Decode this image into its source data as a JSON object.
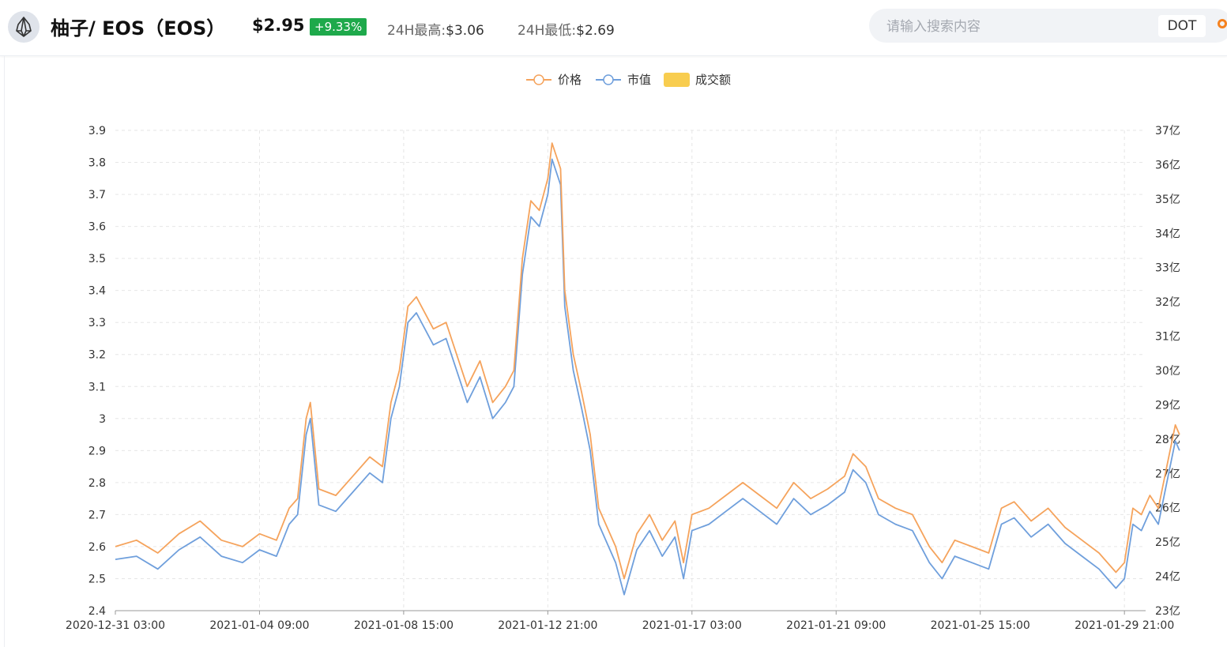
{
  "header": {
    "title": "柚子/ EOS（EOS）",
    "price": "$2.95",
    "change": "+9.33%",
    "high_label": "24H最高:",
    "high_value": "$3.06",
    "low_label": "24H最低:",
    "low_value": "$2.69"
  },
  "search": {
    "placeholder": "请输入搜索内容",
    "button_label": "DOT"
  },
  "colors": {
    "price": "#f5a35c",
    "market_cap": "#6f9fdc",
    "volume": "#f8cd4f",
    "change_badge": "#1ea94b",
    "accent": "#f5821f"
  },
  "chart_data": {
    "type": "line",
    "legend": [
      "价格",
      "市值",
      "成交额"
    ],
    "legend_position": "top-center",
    "grid": true,
    "x_ticks": [
      "2020-12-31 03:00",
      "2021-01-04 09:00",
      "2021-01-08 15:00",
      "2021-01-12 21:00",
      "2021-01-17 03:00",
      "2021-01-21 09:00",
      "2021-01-25 15:00",
      "2021-01-29 21:00"
    ],
    "xlim": [
      "2020-12-31 03:00",
      "2021-01-30 12:00"
    ],
    "y_left": {
      "ticks": [
        "2.4",
        "2.5",
        "2.6",
        "2.7",
        "2.8",
        "2.9",
        "3",
        "3.1",
        "3.2",
        "3.3",
        "3.4",
        "3.5",
        "3.6",
        "3.7",
        "3.8",
        "3.9"
      ],
      "range": [
        2.4,
        3.9
      ]
    },
    "y_right": {
      "ticks": [
        "23亿",
        "24亿",
        "25亿",
        "26亿",
        "27亿",
        "28亿",
        "29亿",
        "30亿",
        "31亿",
        "32亿",
        "33亿",
        "34亿",
        "35亿",
        "36亿",
        "37亿"
      ],
      "range": [
        23,
        37
      ],
      "unit": "亿"
    },
    "series": [
      {
        "name": "价格",
        "axis": "left",
        "points": [
          [
            "2020-12-31 03:00",
            2.6
          ],
          [
            "2020-12-31 18:00",
            2.62
          ],
          [
            "2021-01-01 09:00",
            2.58
          ],
          [
            "2021-01-02 00:00",
            2.64
          ],
          [
            "2021-01-02 15:00",
            2.68
          ],
          [
            "2021-01-03 06:00",
            2.62
          ],
          [
            "2021-01-03 21:00",
            2.6
          ],
          [
            "2021-01-04 09:00",
            2.64
          ],
          [
            "2021-01-04 21:00",
            2.62
          ],
          [
            "2021-01-05 06:00",
            2.72
          ],
          [
            "2021-01-05 12:00",
            2.75
          ],
          [
            "2021-01-05 18:00",
            3.0
          ],
          [
            "2021-01-05 21:00",
            3.05
          ],
          [
            "2021-01-06 03:00",
            2.78
          ],
          [
            "2021-01-06 15:00",
            2.76
          ],
          [
            "2021-01-07 03:00",
            2.82
          ],
          [
            "2021-01-07 15:00",
            2.88
          ],
          [
            "2021-01-08 00:00",
            2.85
          ],
          [
            "2021-01-08 06:00",
            3.05
          ],
          [
            "2021-01-08 12:00",
            3.15
          ],
          [
            "2021-01-08 18:00",
            3.35
          ],
          [
            "2021-01-09 00:00",
            3.38
          ],
          [
            "2021-01-09 12:00",
            3.28
          ],
          [
            "2021-01-09 21:00",
            3.3
          ],
          [
            "2021-01-10 03:00",
            3.22
          ],
          [
            "2021-01-10 12:00",
            3.1
          ],
          [
            "2021-01-10 21:00",
            3.18
          ],
          [
            "2021-01-11 06:00",
            3.05
          ],
          [
            "2021-01-11 15:00",
            3.1
          ],
          [
            "2021-01-11 21:00",
            3.15
          ],
          [
            "2021-01-12 03:00",
            3.5
          ],
          [
            "2021-01-12 09:00",
            3.68
          ],
          [
            "2021-01-12 15:00",
            3.65
          ],
          [
            "2021-01-12 21:00",
            3.75
          ],
          [
            "2021-01-13 00:00",
            3.86
          ],
          [
            "2021-01-13 06:00",
            3.78
          ],
          [
            "2021-01-13 09:00",
            3.4
          ],
          [
            "2021-01-13 15:00",
            3.2
          ],
          [
            "2021-01-13 21:00",
            3.08
          ],
          [
            "2021-01-14 03:00",
            2.95
          ],
          [
            "2021-01-14 09:00",
            2.72
          ],
          [
            "2021-01-14 21:00",
            2.6
          ],
          [
            "2021-01-15 03:00",
            2.5
          ],
          [
            "2021-01-15 12:00",
            2.64
          ],
          [
            "2021-01-15 21:00",
            2.7
          ],
          [
            "2021-01-16 06:00",
            2.62
          ],
          [
            "2021-01-16 15:00",
            2.68
          ],
          [
            "2021-01-16 21:00",
            2.55
          ],
          [
            "2021-01-17 03:00",
            2.7
          ],
          [
            "2021-01-17 15:00",
            2.72
          ],
          [
            "2021-01-18 03:00",
            2.76
          ],
          [
            "2021-01-18 15:00",
            2.8
          ],
          [
            "2021-01-19 03:00",
            2.76
          ],
          [
            "2021-01-19 15:00",
            2.72
          ],
          [
            "2021-01-20 03:00",
            2.8
          ],
          [
            "2021-01-20 15:00",
            2.75
          ],
          [
            "2021-01-21 03:00",
            2.78
          ],
          [
            "2021-01-21 15:00",
            2.82
          ],
          [
            "2021-01-21 21:00",
            2.89
          ],
          [
            "2021-01-22 06:00",
            2.85
          ],
          [
            "2021-01-22 15:00",
            2.75
          ],
          [
            "2021-01-23 03:00",
            2.72
          ],
          [
            "2021-01-23 15:00",
            2.7
          ],
          [
            "2021-01-24 03:00",
            2.6
          ],
          [
            "2021-01-24 12:00",
            2.55
          ],
          [
            "2021-01-24 21:00",
            2.62
          ],
          [
            "2021-01-25 09:00",
            2.6
          ],
          [
            "2021-01-25 21:00",
            2.58
          ],
          [
            "2021-01-26 06:00",
            2.72
          ],
          [
            "2021-01-26 15:00",
            2.74
          ],
          [
            "2021-01-27 03:00",
            2.68
          ],
          [
            "2021-01-27 15:00",
            2.72
          ],
          [
            "2021-01-28 03:00",
            2.66
          ],
          [
            "2021-01-28 15:00",
            2.62
          ],
          [
            "2021-01-29 03:00",
            2.58
          ],
          [
            "2021-01-29 15:00",
            2.52
          ],
          [
            "2021-01-29 21:00",
            2.55
          ],
          [
            "2021-01-30 03:00",
            2.72
          ],
          [
            "2021-01-30 09:00",
            2.7
          ],
          [
            "2021-01-30 15:00",
            2.76
          ],
          [
            "2021-01-30 21:00",
            2.72
          ],
          [
            "2021-01-31 03:00",
            2.85
          ],
          [
            "2021-01-31 09:00",
            2.98
          ],
          [
            "2021-01-31 12:00",
            2.95
          ]
        ]
      },
      {
        "name": "市值",
        "axis": "left",
        "points": [
          [
            "2020-12-31 03:00",
            2.56
          ],
          [
            "2020-12-31 18:00",
            2.57
          ],
          [
            "2021-01-01 09:00",
            2.53
          ],
          [
            "2021-01-02 00:00",
            2.59
          ],
          [
            "2021-01-02 15:00",
            2.63
          ],
          [
            "2021-01-03 06:00",
            2.57
          ],
          [
            "2021-01-03 21:00",
            2.55
          ],
          [
            "2021-01-04 09:00",
            2.59
          ],
          [
            "2021-01-04 21:00",
            2.57
          ],
          [
            "2021-01-05 06:00",
            2.67
          ],
          [
            "2021-01-05 12:00",
            2.7
          ],
          [
            "2021-01-05 18:00",
            2.95
          ],
          [
            "2021-01-05 21:00",
            3.0
          ],
          [
            "2021-01-06 03:00",
            2.73
          ],
          [
            "2021-01-06 15:00",
            2.71
          ],
          [
            "2021-01-07 03:00",
            2.77
          ],
          [
            "2021-01-07 15:00",
            2.83
          ],
          [
            "2021-01-08 00:00",
            2.8
          ],
          [
            "2021-01-08 06:00",
            3.0
          ],
          [
            "2021-01-08 12:00",
            3.1
          ],
          [
            "2021-01-08 18:00",
            3.3
          ],
          [
            "2021-01-09 00:00",
            3.33
          ],
          [
            "2021-01-09 12:00",
            3.23
          ],
          [
            "2021-01-09 21:00",
            3.25
          ],
          [
            "2021-01-10 03:00",
            3.17
          ],
          [
            "2021-01-10 12:00",
            3.05
          ],
          [
            "2021-01-10 21:00",
            3.13
          ],
          [
            "2021-01-11 06:00",
            3.0
          ],
          [
            "2021-01-11 15:00",
            3.05
          ],
          [
            "2021-01-11 21:00",
            3.1
          ],
          [
            "2021-01-12 03:00",
            3.45
          ],
          [
            "2021-01-12 09:00",
            3.63
          ],
          [
            "2021-01-12 15:00",
            3.6
          ],
          [
            "2021-01-12 21:00",
            3.7
          ],
          [
            "2021-01-13 00:00",
            3.81
          ],
          [
            "2021-01-13 06:00",
            3.73
          ],
          [
            "2021-01-13 09:00",
            3.35
          ],
          [
            "2021-01-13 15:00",
            3.15
          ],
          [
            "2021-01-13 21:00",
            3.03
          ],
          [
            "2021-01-14 03:00",
            2.9
          ],
          [
            "2021-01-14 09:00",
            2.67
          ],
          [
            "2021-01-14 21:00",
            2.55
          ],
          [
            "2021-01-15 03:00",
            2.45
          ],
          [
            "2021-01-15 12:00",
            2.59
          ],
          [
            "2021-01-15 21:00",
            2.65
          ],
          [
            "2021-01-16 06:00",
            2.57
          ],
          [
            "2021-01-16 15:00",
            2.63
          ],
          [
            "2021-01-16 21:00",
            2.5
          ],
          [
            "2021-01-17 03:00",
            2.65
          ],
          [
            "2021-01-17 15:00",
            2.67
          ],
          [
            "2021-01-18 03:00",
            2.71
          ],
          [
            "2021-01-18 15:00",
            2.75
          ],
          [
            "2021-01-19 03:00",
            2.71
          ],
          [
            "2021-01-19 15:00",
            2.67
          ],
          [
            "2021-01-20 03:00",
            2.75
          ],
          [
            "2021-01-20 15:00",
            2.7
          ],
          [
            "2021-01-21 03:00",
            2.73
          ],
          [
            "2021-01-21 15:00",
            2.77
          ],
          [
            "2021-01-21 21:00",
            2.84
          ],
          [
            "2021-01-22 06:00",
            2.8
          ],
          [
            "2021-01-22 15:00",
            2.7
          ],
          [
            "2021-01-23 03:00",
            2.67
          ],
          [
            "2021-01-23 15:00",
            2.65
          ],
          [
            "2021-01-24 03:00",
            2.55
          ],
          [
            "2021-01-24 12:00",
            2.5
          ],
          [
            "2021-01-24 21:00",
            2.57
          ],
          [
            "2021-01-25 09:00",
            2.55
          ],
          [
            "2021-01-25 21:00",
            2.53
          ],
          [
            "2021-01-26 06:00",
            2.67
          ],
          [
            "2021-01-26 15:00",
            2.69
          ],
          [
            "2021-01-27 03:00",
            2.63
          ],
          [
            "2021-01-27 15:00",
            2.67
          ],
          [
            "2021-01-28 03:00",
            2.61
          ],
          [
            "2021-01-28 15:00",
            2.57
          ],
          [
            "2021-01-29 03:00",
            2.53
          ],
          [
            "2021-01-29 15:00",
            2.47
          ],
          [
            "2021-01-29 21:00",
            2.5
          ],
          [
            "2021-01-30 03:00",
            2.67
          ],
          [
            "2021-01-30 09:00",
            2.65
          ],
          [
            "2021-01-30 15:00",
            2.71
          ],
          [
            "2021-01-30 21:00",
            2.67
          ],
          [
            "2021-01-31 03:00",
            2.8
          ],
          [
            "2021-01-31 09:00",
            2.93
          ],
          [
            "2021-01-31 12:00",
            2.9
          ]
        ]
      }
    ]
  }
}
